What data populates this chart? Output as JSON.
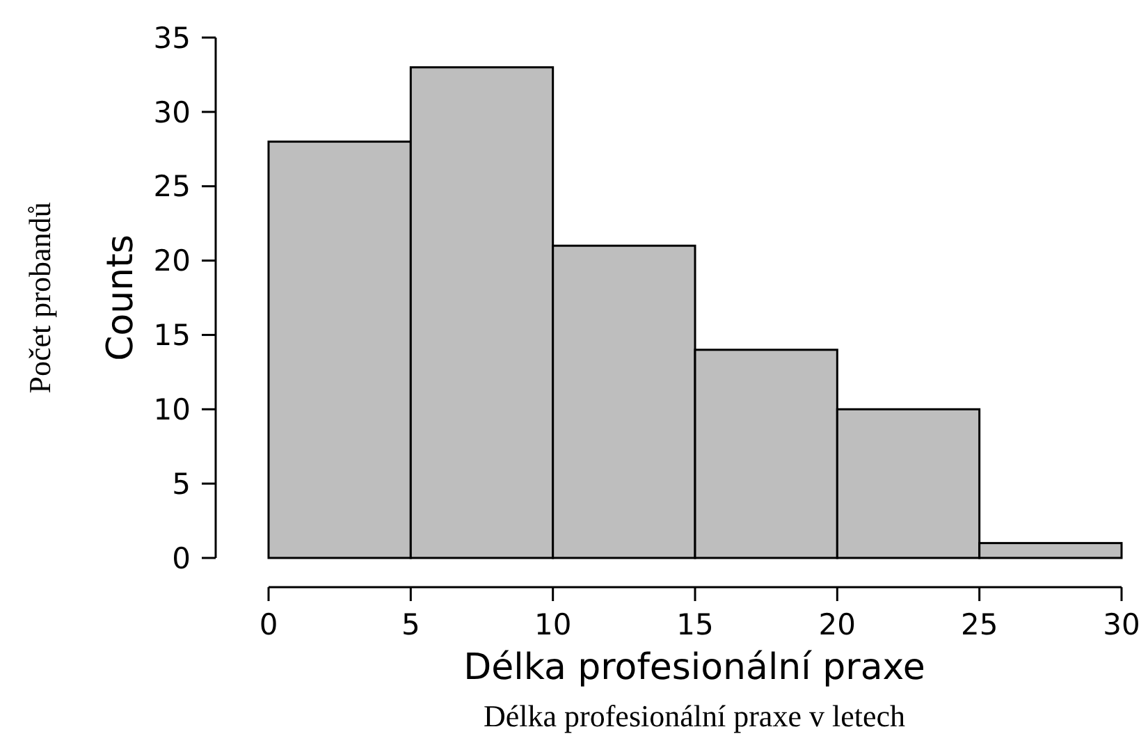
{
  "chart_data": {
    "type": "histogram",
    "xlabel": "Délka profesionální praxe",
    "ylabel": "Counts",
    "annotations": [
      "Délka profesionální praxe v letech",
      "Počet probandů"
    ],
    "bins": [
      0,
      5,
      10,
      15,
      20,
      25,
      30
    ],
    "values": [
      28,
      33,
      21,
      14,
      10,
      1
    ],
    "color": "#bebebe",
    "xlim": [
      0,
      30
    ],
    "xticks": [
      0,
      5,
      10,
      15,
      20,
      25,
      30
    ],
    "ylim": [
      0,
      35
    ],
    "yticks": [
      0,
      5,
      10,
      15,
      20,
      25,
      30,
      35
    ],
    "grid": false
  }
}
